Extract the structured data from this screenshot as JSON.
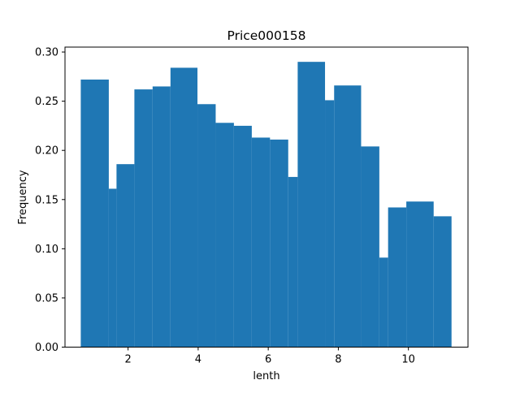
{
  "chart_data": {
    "type": "bar",
    "title": "Price000158",
    "xlabel": "lenth",
    "ylabel": "Frequency",
    "xlim": [
      0.2,
      11.7
    ],
    "ylim": [
      0,
      0.305
    ],
    "xticks": [
      2,
      4,
      6,
      8,
      10
    ],
    "yticks": [
      0.0,
      0.05,
      0.1,
      0.15,
      0.2,
      0.25,
      0.3
    ],
    "ytick_labels": [
      "0.00",
      "0.05",
      "0.10",
      "0.15",
      "0.20",
      "0.25",
      "0.30"
    ],
    "bar_color": "#1f77b4",
    "grid": false,
    "bins": [
      {
        "x0": 0.65,
        "x1": 1.45,
        "value": 0.272
      },
      {
        "x0": 1.45,
        "x1": 1.67,
        "value": 0.161
      },
      {
        "x0": 1.67,
        "x1": 2.18,
        "value": 0.186
      },
      {
        "x0": 2.18,
        "x1": 2.7,
        "value": 0.262
      },
      {
        "x0": 2.7,
        "x1": 3.21,
        "value": 0.265
      },
      {
        "x0": 3.21,
        "x1": 3.98,
        "value": 0.284
      },
      {
        "x0": 3.98,
        "x1": 4.5,
        "value": 0.247
      },
      {
        "x0": 4.5,
        "x1": 5.02,
        "value": 0.228
      },
      {
        "x0": 5.02,
        "x1": 5.53,
        "value": 0.225
      },
      {
        "x0": 5.53,
        "x1": 6.05,
        "value": 0.213
      },
      {
        "x0": 6.05,
        "x1": 6.57,
        "value": 0.211
      },
      {
        "x0": 6.57,
        "x1": 6.84,
        "value": 0.173
      },
      {
        "x0": 6.84,
        "x1": 7.62,
        "value": 0.29
      },
      {
        "x0": 7.62,
        "x1": 7.88,
        "value": 0.251
      },
      {
        "x0": 7.88,
        "x1": 8.65,
        "value": 0.266
      },
      {
        "x0": 8.65,
        "x1": 9.17,
        "value": 0.204
      },
      {
        "x0": 9.17,
        "x1": 9.42,
        "value": 0.091
      },
      {
        "x0": 9.42,
        "x1": 9.94,
        "value": 0.142
      },
      {
        "x0": 9.94,
        "x1": 10.72,
        "value": 0.148
      },
      {
        "x0": 10.72,
        "x1": 11.23,
        "value": 0.133
      }
    ]
  }
}
